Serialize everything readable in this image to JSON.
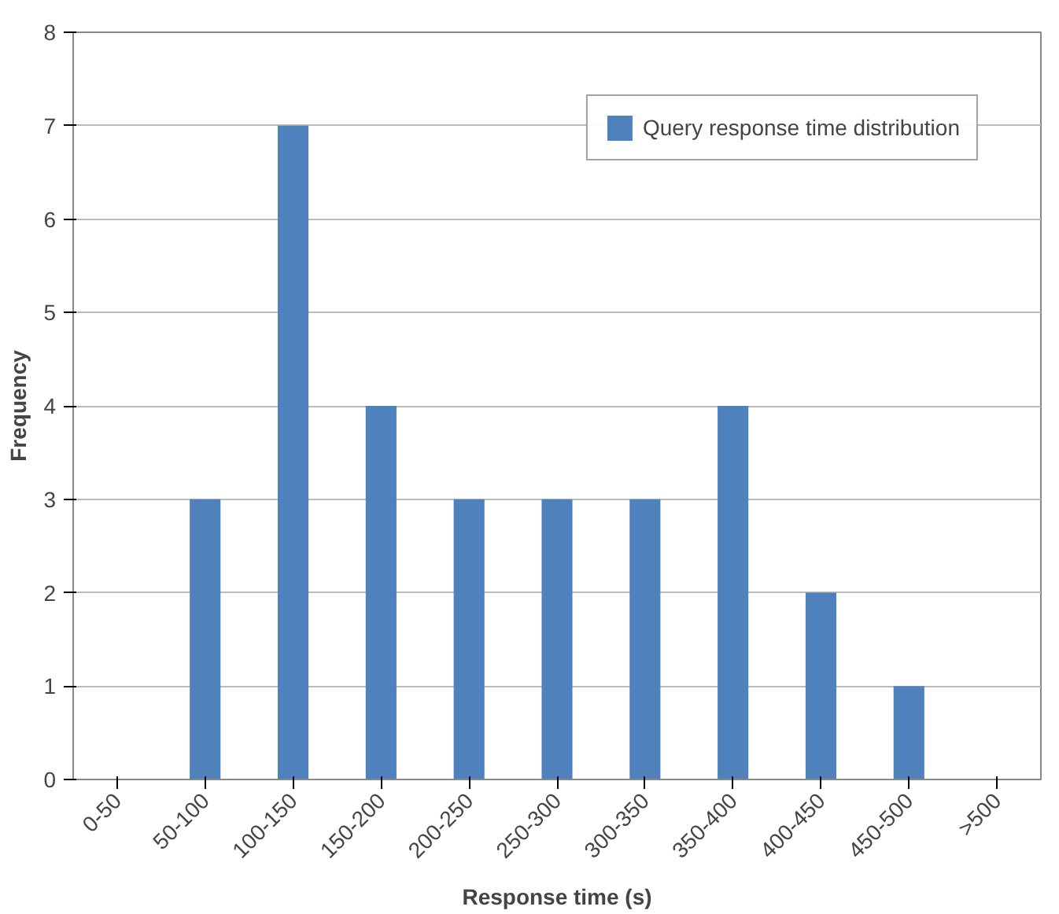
{
  "chart_data": {
    "type": "bar",
    "xlabel": "Response time (s)",
    "ylabel": "Frequency",
    "categories": [
      "0-50",
      "50-100",
      "100-150",
      "150-200",
      "200-250",
      "250-300",
      "300-350",
      "350-400",
      "400-450",
      "450-500",
      ">500"
    ],
    "series": [
      {
        "name": "Query response time distribution",
        "color": "#4f81bd",
        "values": [
          0,
          3,
          7,
          4,
          3,
          3,
          3,
          4,
          2,
          1,
          0
        ]
      }
    ],
    "ylim": [
      0,
      8
    ],
    "yticks": [
      0,
      1,
      2,
      3,
      4,
      5,
      6,
      7,
      8
    ],
    "grid": "y",
    "legend": "top right"
  }
}
